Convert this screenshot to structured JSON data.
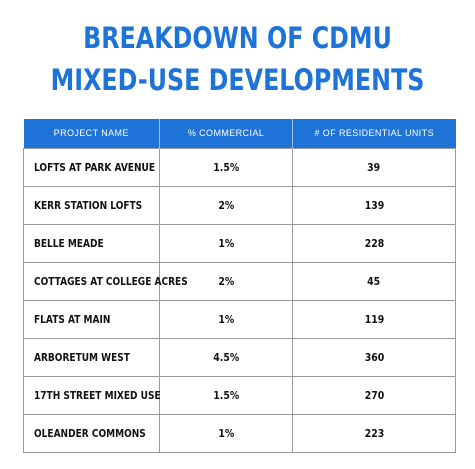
{
  "title_line1": "BREAKDOWN OF CDMU",
  "title_line2": "MIXED-USE DEVELOPMENTS",
  "colors": {
    "title": "#1e73d8",
    "header_bg": "#1e73d8",
    "header_text": "#ffffff",
    "border": "#9a9a9a"
  },
  "chart_data": {
    "type": "table",
    "title": "BREAKDOWN OF CDMU MIXED-USE DEVELOPMENTS",
    "columns": [
      "PROJECT NAME",
      "% COMMERCIAL",
      "# OF RESIDENTIAL UNITS"
    ],
    "rows": [
      [
        "LOFTS AT PARK AVENUE",
        "1.5%",
        "39"
      ],
      [
        "KERR STATION LOFTS",
        "2%",
        "139"
      ],
      [
        "BELLE MEADE",
        "1%",
        "228"
      ],
      [
        "COTTAGES AT COLLEGE ACRES",
        "2%",
        "45"
      ],
      [
        "FLATS AT MAIN",
        "1%",
        "119"
      ],
      [
        "ARBORETUM WEST",
        "4.5%",
        "360"
      ],
      [
        "17TH STREET MIXED USE",
        "1.5%",
        "270"
      ],
      [
        "OLEANDER COMMONS",
        "1%",
        "223"
      ]
    ]
  }
}
